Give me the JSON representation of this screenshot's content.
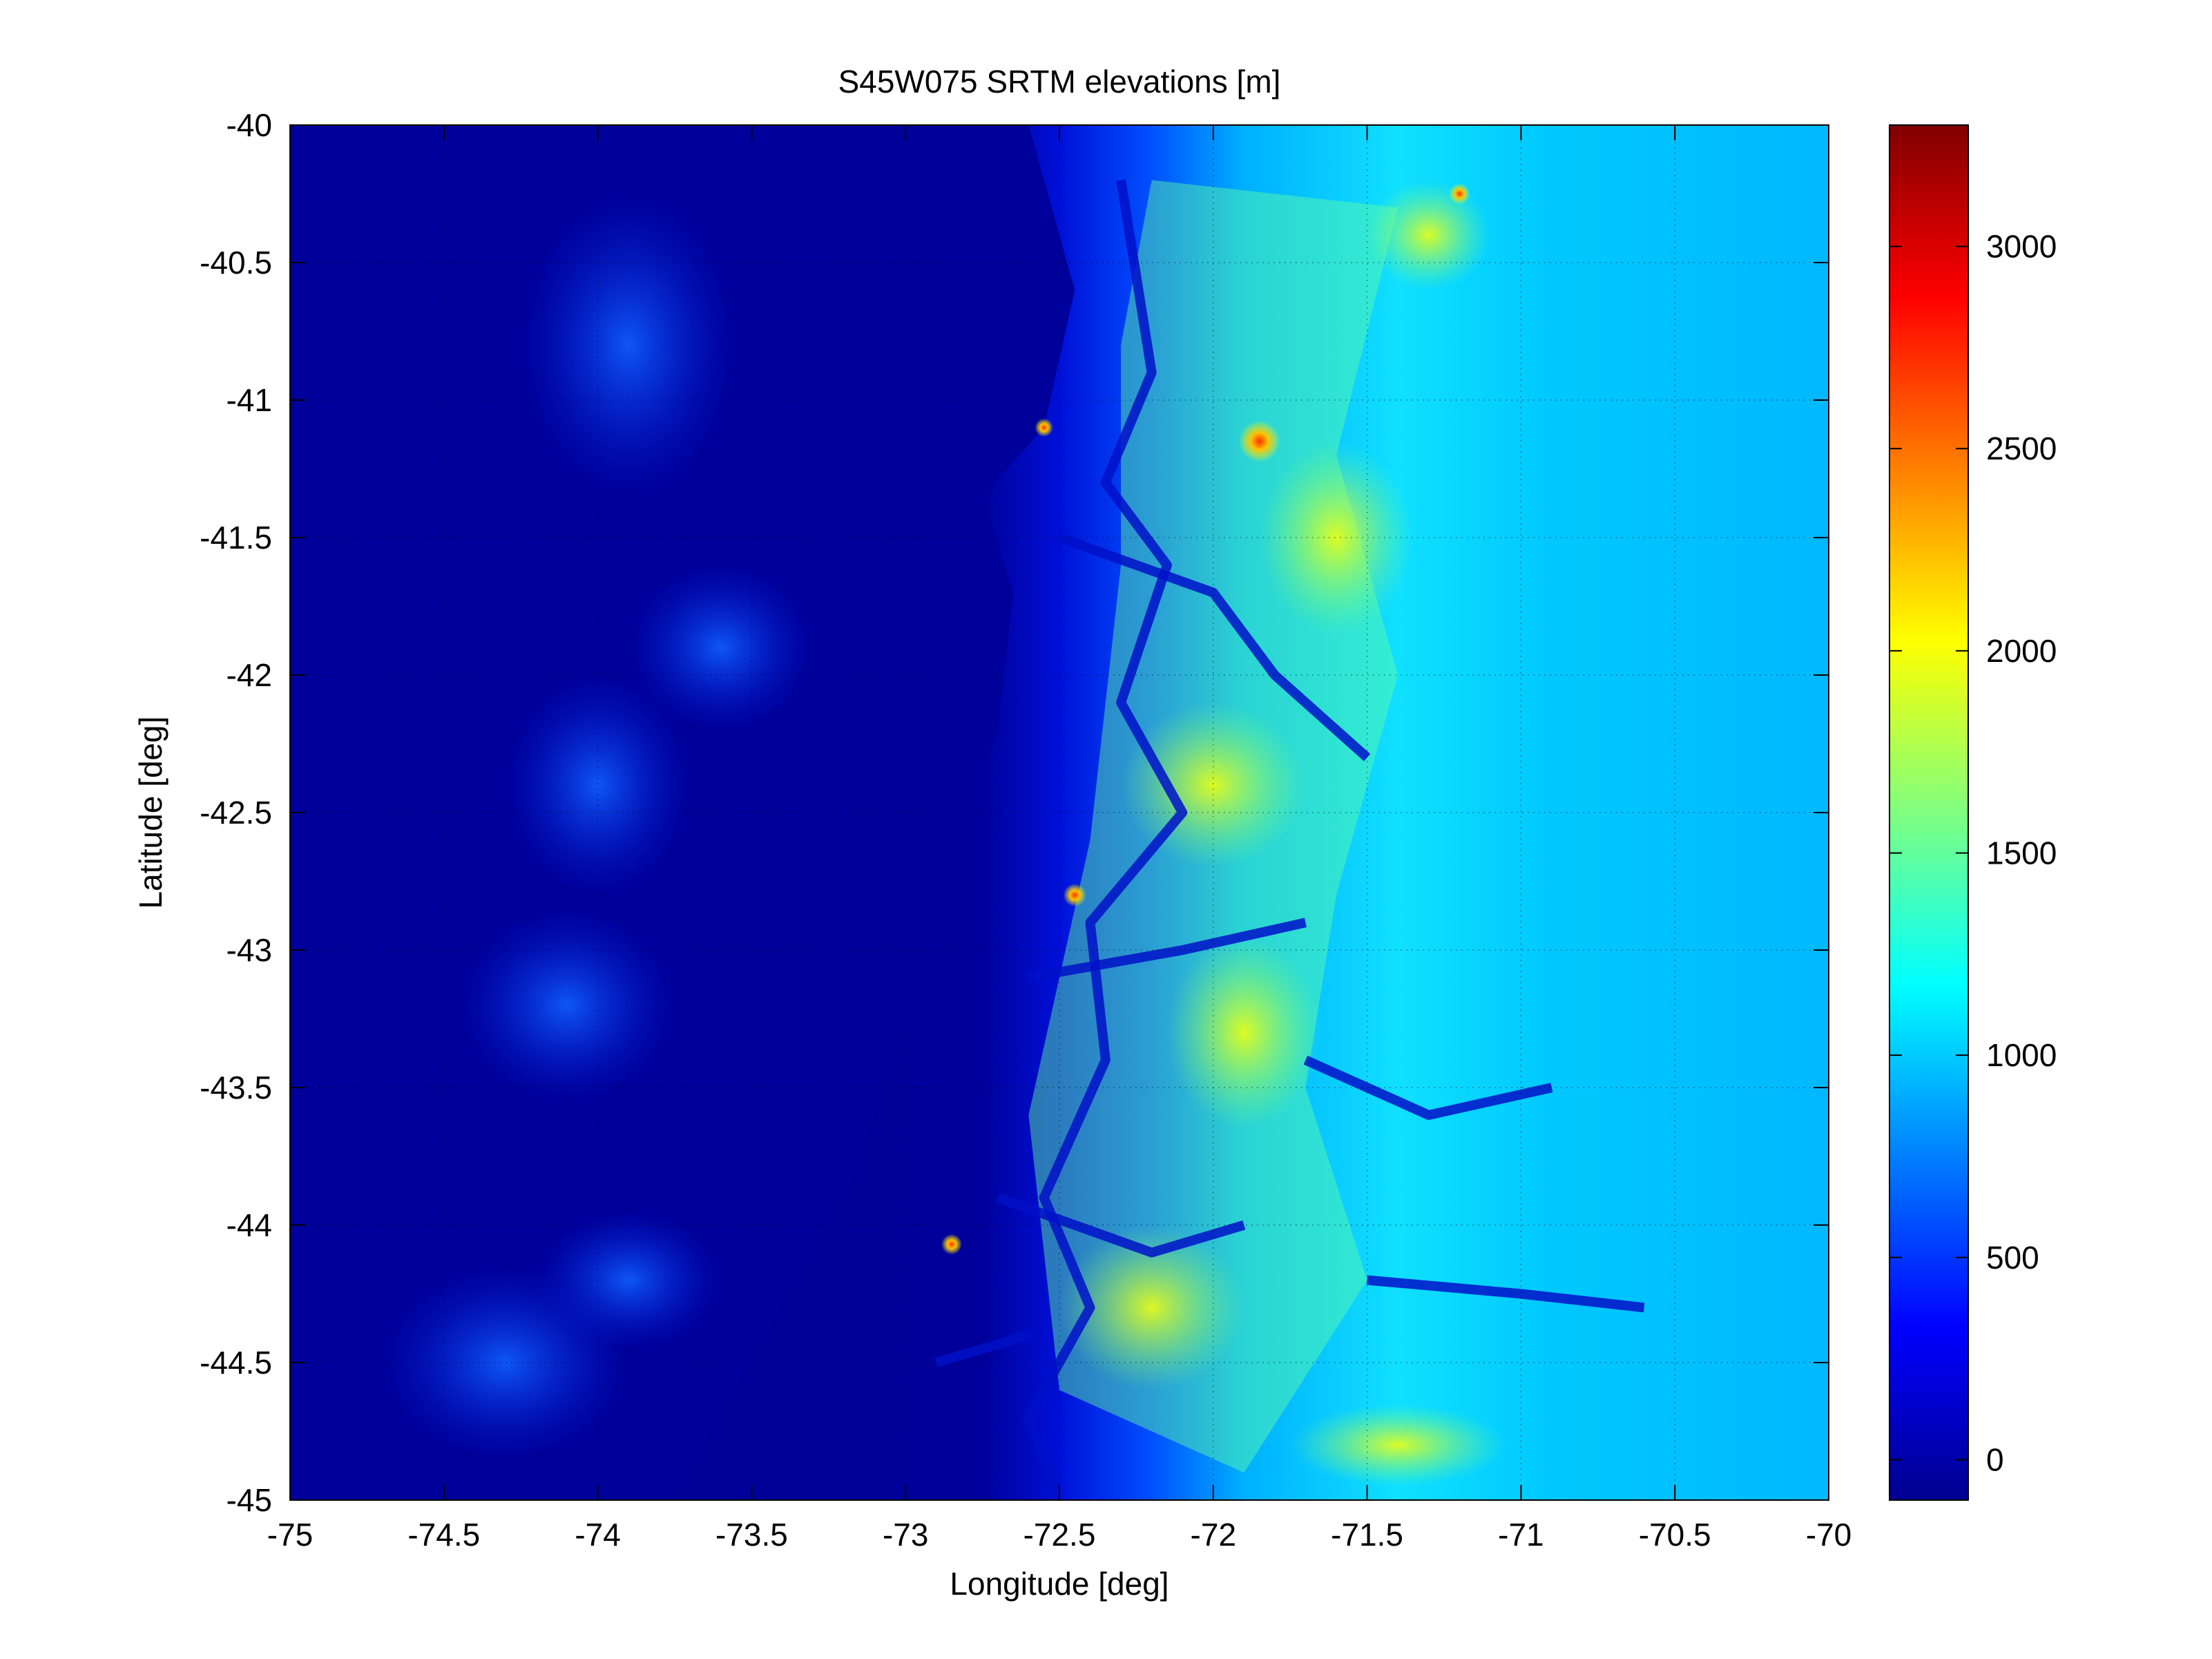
{
  "chart_data": {
    "type": "heatmap",
    "title": "S45W075 SRTM elevations [m]",
    "xlabel": "Longitude [deg]",
    "ylabel": "Latitude [deg]",
    "xlim": [
      -75,
      -70
    ],
    "ylim": [
      -45,
      -40
    ],
    "x_ticks": [
      -75,
      -74.5,
      -74,
      -73.5,
      -73,
      -72.5,
      -72,
      -71.5,
      -71,
      -70.5,
      -70
    ],
    "y_ticks": [
      -40,
      -40.5,
      -41,
      -41.5,
      -42,
      -42.5,
      -43,
      -43.5,
      -44,
      -44.5,
      -45
    ],
    "grid": true,
    "colormap": "jet",
    "colorbar": {
      "clim": [
        -100,
        3300
      ],
      "ticks": [
        0,
        500,
        1000,
        1500,
        2000,
        2500,
        3000
      ]
    },
    "z_description": "terrain elevation in metres; ocean ~0 west of ~-73 deg, Andes peaks 2000-3300 m between -72.5 and -71",
    "peaks": [
      {
        "lon": -71.85,
        "lat": -41.15,
        "value": 3200
      },
      {
        "lon": -72.45,
        "lat": -42.8,
        "value": 2400
      },
      {
        "lon": -72.85,
        "lat": -44.07,
        "value": 2300
      },
      {
        "lon": -72.55,
        "lat": -41.1,
        "value": 2200
      },
      {
        "lon": -71.2,
        "lat": -40.25,
        "value": 2300
      }
    ]
  }
}
